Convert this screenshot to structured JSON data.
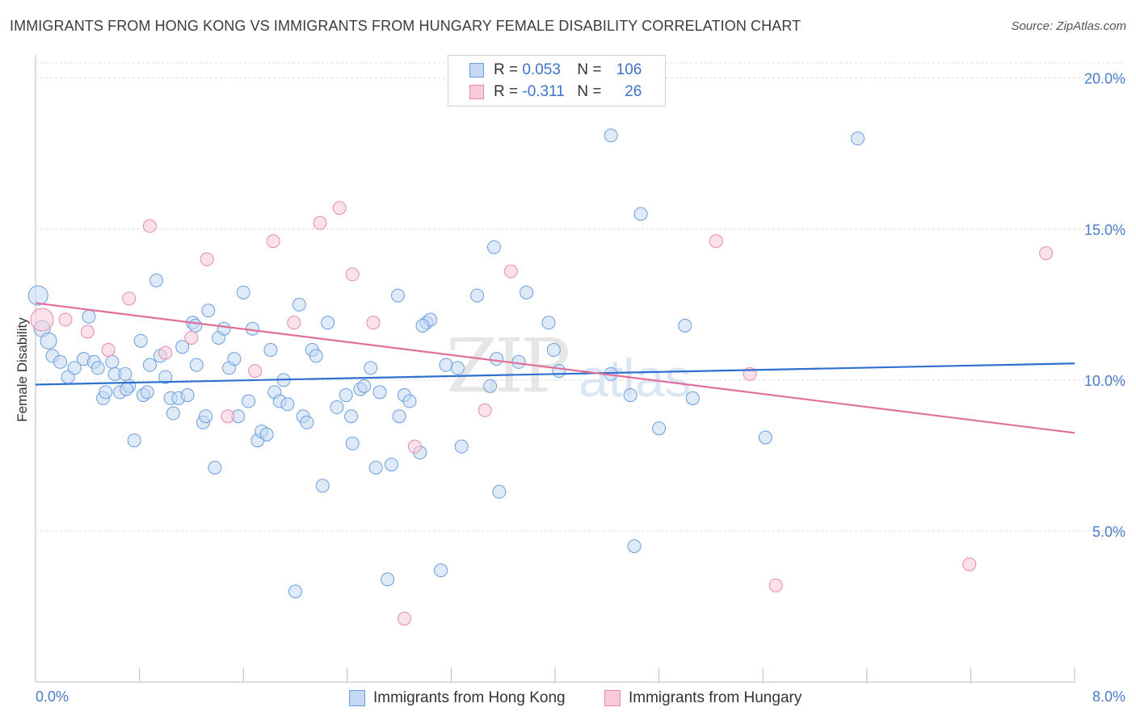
{
  "title": "IMMIGRANTS FROM HONG KONG VS IMMIGRANTS FROM HUNGARY FEMALE DISABILITY CORRELATION CHART",
  "source": "Source: ZipAtlas.com",
  "watermark": {
    "zip": "ZIP",
    "atlas": "atlas"
  },
  "legend": {
    "rows": [
      {
        "r_label": "R = ",
        "r_value": "0.053",
        "n_label": "N = ",
        "n_value": "106"
      },
      {
        "r_label": "R = ",
        "r_value": "-0.311",
        "n_label": "N = ",
        "n_value": "26"
      }
    ]
  },
  "chart_data": {
    "type": "scatter",
    "xlabel": "",
    "ylabel": "Female Disability",
    "xlim": [
      0,
      8
    ],
    "ylim": [
      0,
      20.5
    ],
    "x_tick_labels": [
      "0.0%",
      "8.0%"
    ],
    "y_ticks": [
      5,
      10,
      15,
      20
    ],
    "y_tick_labels": [
      "5.0%",
      "10.0%",
      "15.0%",
      "20.0%"
    ],
    "grid": true,
    "colors": {
      "hongkong": "#6a9ee0",
      "hongkong_fill": "#c5d9f3",
      "hungary": "#e98aa8",
      "hungary_fill": "#f8cbd9",
      "hongkong_line": "#2f6fd0",
      "hungary_line": "#e0709a"
    },
    "series": [
      {
        "name": "Immigrants from Hong Kong",
        "trend": {
          "x": [
            0,
            8
          ],
          "y": [
            9.85,
            10.55
          ]
        },
        "points": [
          [
            0.02,
            12.8
          ],
          [
            0.05,
            11.7
          ],
          [
            0.1,
            11.3
          ],
          [
            0.13,
            10.8
          ],
          [
            0.19,
            10.6
          ],
          [
            0.25,
            10.1
          ],
          [
            0.3,
            10.4
          ],
          [
            0.37,
            10.7
          ],
          [
            0.41,
            12.1
          ],
          [
            0.45,
            10.6
          ],
          [
            0.48,
            10.4
          ],
          [
            0.52,
            9.4
          ],
          [
            0.54,
            9.6
          ],
          [
            0.59,
            10.6
          ],
          [
            0.61,
            10.2
          ],
          [
            0.65,
            9.6
          ],
          [
            0.69,
            10.2
          ],
          [
            0.72,
            9.8
          ],
          [
            0.76,
            8.0
          ],
          [
            0.81,
            11.3
          ],
          [
            0.83,
            9.5
          ],
          [
            0.86,
            9.6
          ],
          [
            0.88,
            10.5
          ],
          [
            0.93,
            13.3
          ],
          [
            0.96,
            10.8
          ],
          [
            1.0,
            10.1
          ],
          [
            1.04,
            9.4
          ],
          [
            1.06,
            8.9
          ],
          [
            1.1,
            9.4
          ],
          [
            1.13,
            11.1
          ],
          [
            1.17,
            9.5
          ],
          [
            1.21,
            11.9
          ],
          [
            1.24,
            10.5
          ],
          [
            1.29,
            8.6
          ],
          [
            1.31,
            8.8
          ],
          [
            1.33,
            12.3
          ],
          [
            1.38,
            7.1
          ],
          [
            1.41,
            11.4
          ],
          [
            1.45,
            11.7
          ],
          [
            1.49,
            10.4
          ],
          [
            1.53,
            10.7
          ],
          [
            1.56,
            8.8
          ],
          [
            1.6,
            12.9
          ],
          [
            1.64,
            9.3
          ],
          [
            1.67,
            11.7
          ],
          [
            1.71,
            8.0
          ],
          [
            1.74,
            8.3
          ],
          [
            1.78,
            8.2
          ],
          [
            1.81,
            11.0
          ],
          [
            1.84,
            9.6
          ],
          [
            1.88,
            9.3
          ],
          [
            1.91,
            10.0
          ],
          [
            1.94,
            9.2
          ],
          [
            2.0,
            3.0
          ],
          [
            2.03,
            12.5
          ],
          [
            2.06,
            8.8
          ],
          [
            2.09,
            8.6
          ],
          [
            2.13,
            11.0
          ],
          [
            2.16,
            10.8
          ],
          [
            2.21,
            6.5
          ],
          [
            2.25,
            11.9
          ],
          [
            2.32,
            9.1
          ],
          [
            2.39,
            9.5
          ],
          [
            2.43,
            8.8
          ],
          [
            2.44,
            7.9
          ],
          [
            2.5,
            9.7
          ],
          [
            2.53,
            9.8
          ],
          [
            2.58,
            10.4
          ],
          [
            2.62,
            7.1
          ],
          [
            2.65,
            9.6
          ],
          [
            2.71,
            3.4
          ],
          [
            2.74,
            7.2
          ],
          [
            2.79,
            12.8
          ],
          [
            2.8,
            8.8
          ],
          [
            2.84,
            9.5
          ],
          [
            2.88,
            9.3
          ],
          [
            2.96,
            7.6
          ],
          [
            3.01,
            11.9
          ],
          [
            3.04,
            12.0
          ],
          [
            3.12,
            3.7
          ],
          [
            3.16,
            10.5
          ],
          [
            3.25,
            10.4
          ],
          [
            3.28,
            7.8
          ],
          [
            3.4,
            12.8
          ],
          [
            3.5,
            9.8
          ],
          [
            3.53,
            14.4
          ],
          [
            3.55,
            10.7
          ],
          [
            3.57,
            6.3
          ],
          [
            3.78,
            12.9
          ],
          [
            3.95,
            11.9
          ],
          [
            3.99,
            11.0
          ],
          [
            4.03,
            10.3
          ],
          [
            4.43,
            18.1
          ],
          [
            4.43,
            10.2
          ],
          [
            4.58,
            9.5
          ],
          [
            4.61,
            4.5
          ],
          [
            4.66,
            15.5
          ],
          [
            4.8,
            8.4
          ],
          [
            5.0,
            11.8
          ],
          [
            5.06,
            9.4
          ],
          [
            5.62,
            8.1
          ],
          [
            6.33,
            18.0
          ],
          [
            1.23,
            11.8
          ],
          [
            0.7,
            9.7
          ],
          [
            2.98,
            11.8
          ],
          [
            3.72,
            10.6
          ]
        ]
      },
      {
        "name": "Immigrants from Hungary",
        "trend": {
          "x": [
            0,
            8
          ],
          "y": [
            12.55,
            8.25
          ]
        },
        "points": [
          [
            0.05,
            12.0
          ],
          [
            0.23,
            12.0
          ],
          [
            0.4,
            11.6
          ],
          [
            0.56,
            11.0
          ],
          [
            0.72,
            12.7
          ],
          [
            0.88,
            15.1
          ],
          [
            1.0,
            10.9
          ],
          [
            1.2,
            11.4
          ],
          [
            1.32,
            14.0
          ],
          [
            1.48,
            8.8
          ],
          [
            1.69,
            10.3
          ],
          [
            1.83,
            14.6
          ],
          [
            1.99,
            11.9
          ],
          [
            2.19,
            15.2
          ],
          [
            2.34,
            15.7
          ],
          [
            2.44,
            13.5
          ],
          [
            2.6,
            11.9
          ],
          [
            2.84,
            2.1
          ],
          [
            2.92,
            7.8
          ],
          [
            3.46,
            9.0
          ],
          [
            3.66,
            13.6
          ],
          [
            5.24,
            14.6
          ],
          [
            5.5,
            10.2
          ],
          [
            5.7,
            3.2
          ],
          [
            7.19,
            3.9
          ],
          [
            7.78,
            14.2
          ]
        ]
      }
    ]
  },
  "bottom_legend": {
    "items": [
      "Immigrants from Hong Kong",
      "Immigrants from Hungary"
    ]
  }
}
